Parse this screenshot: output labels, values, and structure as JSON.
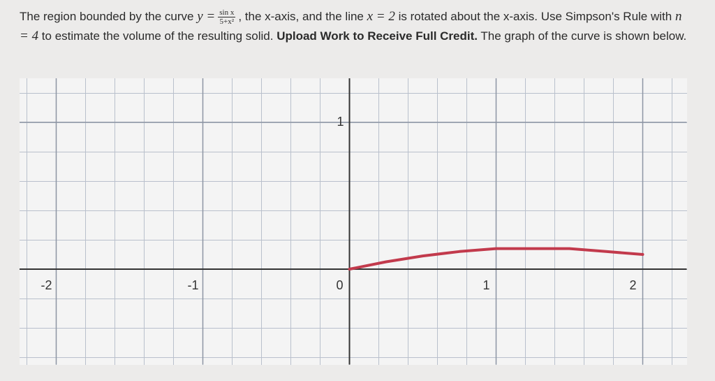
{
  "problem": [
    "The region bounded by the curve ",
    "y =",
    "sin x",
    "5+x²",
    ", the x-axis, and the line ",
    "x = 2",
    " is rotated about the x-axis. Use Simpson's Rule with ",
    "n = 4",
    " to estimate the volume of the resulting solid. ",
    "Upload Work to Receive Full Credit.",
    " The graph of the curve is shown below."
  ],
  "chart_data": {
    "type": "line",
    "x": [
      0,
      0.25,
      0.5,
      0.75,
      1,
      1.25,
      1.5,
      1.75,
      2
    ],
    "series": [
      {
        "color": "#c23a4c",
        "values": [
          0,
          0.05,
          0.09,
          0.12,
          0.14,
          0.14,
          0.14,
          0.12,
          0.1
        ]
      }
    ],
    "xlim": [
      -2.25,
      2.3
    ],
    "ylim": [
      -0.65,
      1.3
    ],
    "xticks": [
      -2,
      -1,
      0,
      1,
      2
    ],
    "yticks": [
      1
    ],
    "grid": true
  }
}
